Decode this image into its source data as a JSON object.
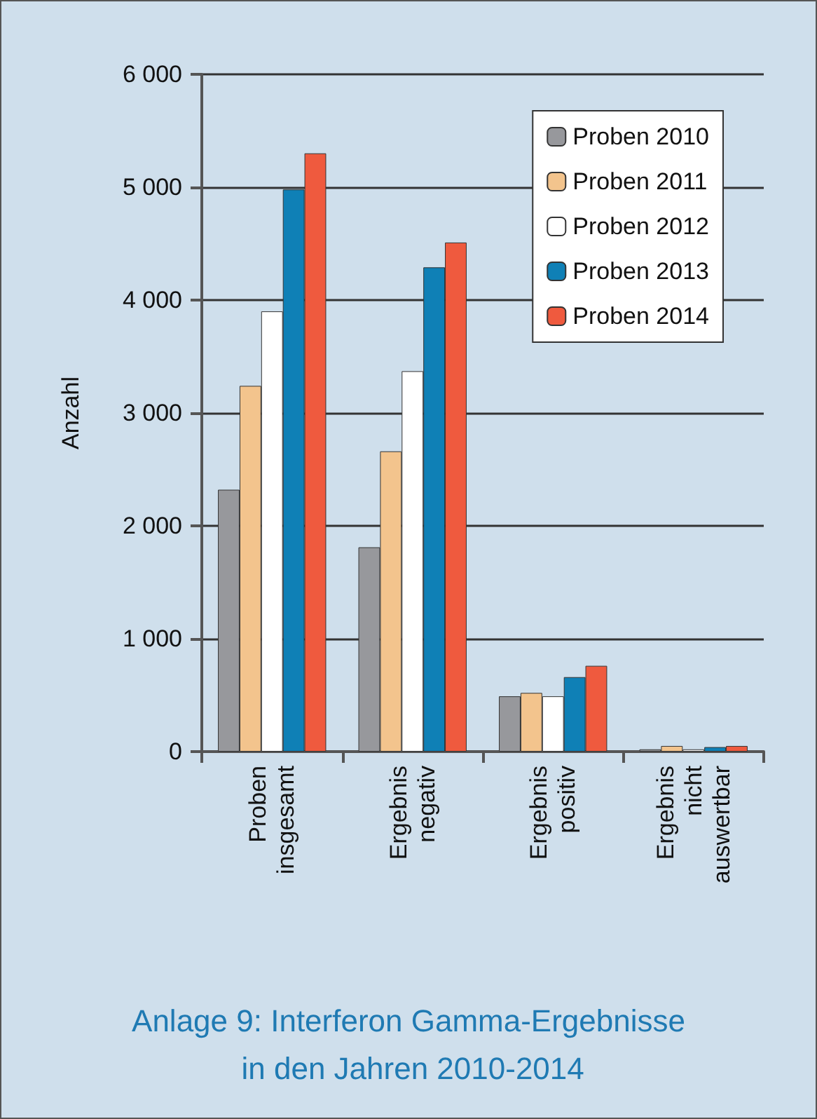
{
  "chart_data": {
    "type": "bar",
    "title": "Anlage 9: Interferon Gamma-Ergebnisse in den Jahren 2010-2014",
    "ylabel": "Anzahl",
    "categories": [
      "Proben insgesamt",
      "Ergebnis negativ",
      "Ergebnis positiv",
      "Ergebnis nicht auswertbar"
    ],
    "series": [
      {
        "name": "Proben 2010",
        "color": "#97989c",
        "values": [
          2320,
          1810,
          490,
          20
        ]
      },
      {
        "name": "Proben 2011",
        "color": "#f3c48d",
        "values": [
          3240,
          2660,
          520,
          50
        ]
      },
      {
        "name": "Proben 2012",
        "color": "#ffffff",
        "values": [
          3900,
          3370,
          490,
          20
        ]
      },
      {
        "name": "Proben 2013",
        "color": "#0f80b6",
        "values": [
          4980,
          4290,
          660,
          40
        ]
      },
      {
        "name": "Proben 2014",
        "color": "#ef5a3e",
        "values": [
          5300,
          4510,
          760,
          50
        ]
      }
    ],
    "ylim": [
      0,
      6000
    ],
    "yticks": [
      {
        "value": 0,
        "label": "0"
      },
      {
        "value": 1000,
        "label": "1 000"
      },
      {
        "value": 2000,
        "label": "2 000"
      },
      {
        "value": 3000,
        "label": "3 000"
      },
      {
        "value": 4000,
        "label": "4 000"
      },
      {
        "value": 5000,
        "label": "5 000"
      },
      {
        "value": 6000,
        "label": "6 000"
      }
    ],
    "grid": "y",
    "legend": "top right"
  }
}
